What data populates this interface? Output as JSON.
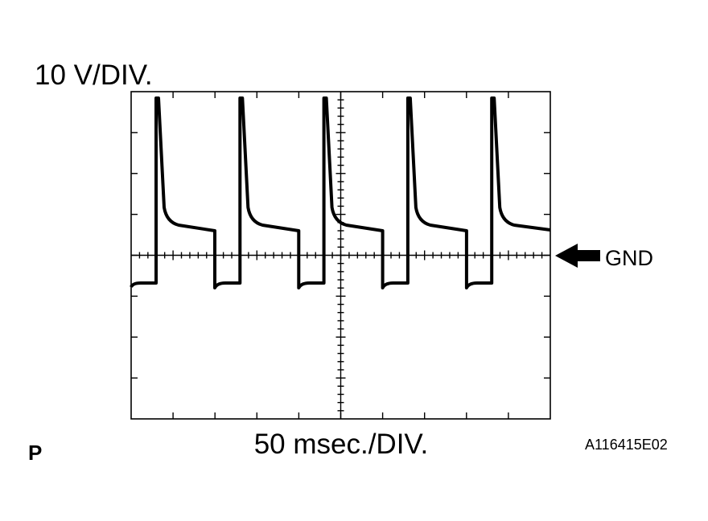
{
  "scope": {
    "volts_per_div": "10 V/DIV.",
    "time_per_div": "50 msec./DIV.",
    "ground_label": "GND"
  },
  "footer": {
    "mode": "P",
    "figure_id": "A116415E02"
  }
}
